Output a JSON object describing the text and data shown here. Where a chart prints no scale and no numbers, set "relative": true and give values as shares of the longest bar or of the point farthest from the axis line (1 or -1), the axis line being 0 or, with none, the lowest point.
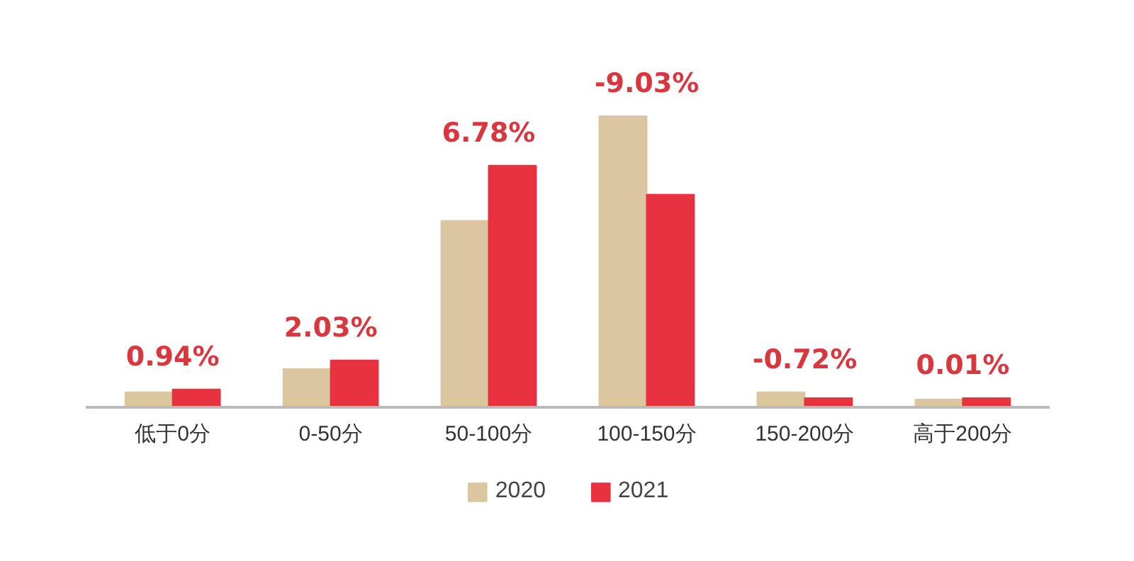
{
  "chart_data": {
    "type": "bar",
    "relative": true,
    "categories": [
      "低于0分",
      "0-50分",
      "50-100分",
      "100-150分",
      "150-200分",
      "高于200分"
    ],
    "series": [
      {
        "name": "2020",
        "color": "#dcc6a0",
        "values": [
          0.05,
          0.13,
          0.64,
          1.0,
          0.05,
          0.025
        ]
      },
      {
        "name": "2021",
        "color": "#e8323f",
        "values": [
          0.06,
          0.16,
          0.83,
          0.73,
          0.03,
          0.03
        ]
      }
    ],
    "annotations": [
      "0.94%",
      "2.03%",
      "6.78%",
      "-9.03%",
      "-0.72%",
      "0.01%"
    ],
    "legend": "bottom"
  }
}
